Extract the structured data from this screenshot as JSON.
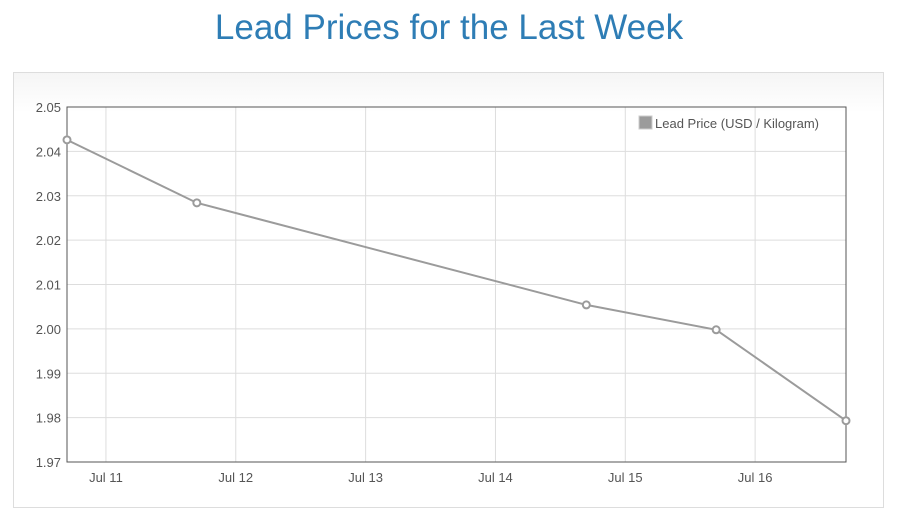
{
  "title": "Lead Prices for the Last Week",
  "chart_data": {
    "type": "line",
    "title": "Lead Prices for the Last Week",
    "xlabel": "",
    "ylabel": "",
    "ylim": [
      1.97,
      2.05
    ],
    "xlim_days": [
      10.7,
      16.7
    ],
    "yticks": [
      "2.05",
      "2.04",
      "2.03",
      "2.02",
      "2.01",
      "2.00",
      "1.99",
      "1.98",
      "1.97"
    ],
    "xticks": [
      {
        "label": "Jul 11",
        "day": 11
      },
      {
        "label": "Jul 12",
        "day": 12
      },
      {
        "label": "Jul 13",
        "day": 13
      },
      {
        "label": "Jul 14",
        "day": 14
      },
      {
        "label": "Jul 15",
        "day": 15
      },
      {
        "label": "Jul 16",
        "day": 16
      }
    ],
    "grid": true,
    "legend": {
      "position": "top-right"
    },
    "series": [
      {
        "name": "Lead Price (USD / Kilogram)",
        "color": "#9b9b9b",
        "points": [
          {
            "day": 10.7,
            "value": 2.0426
          },
          {
            "day": 11.7,
            "value": 2.0284
          },
          {
            "day": 14.7,
            "value": 2.0054
          },
          {
            "day": 15.7,
            "value": 1.9998
          },
          {
            "day": 16.7,
            "value": 1.9793
          }
        ]
      }
    ]
  }
}
